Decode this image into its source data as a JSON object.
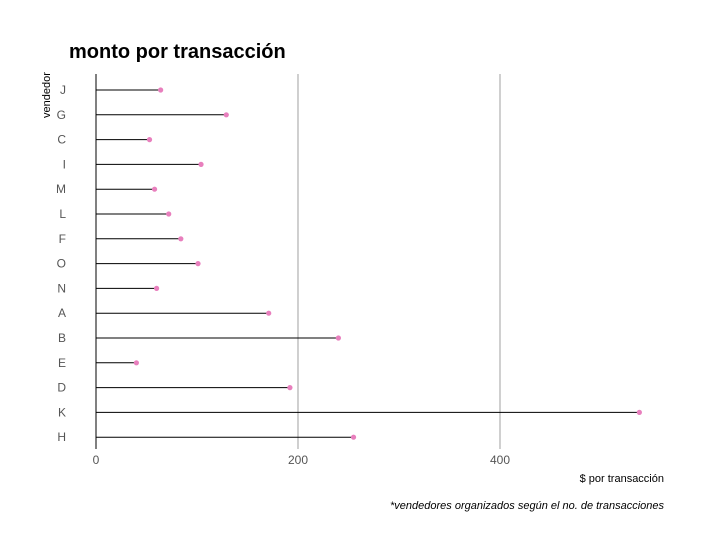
{
  "chart_data": {
    "type": "lollipop",
    "title": "monto por transacción",
    "xlabel": "$ por transacción",
    "ylabel": "vendedor",
    "caption": "*vendedores organizados según el no. de transacciones",
    "xlim": [
      0,
      540
    ],
    "xticks": [
      0,
      200,
      400
    ],
    "grid": "vertical",
    "categories": [
      "J",
      "G",
      "C",
      "I",
      "M",
      "L",
      "F",
      "O",
      "N",
      "A",
      "B",
      "E",
      "D",
      "K",
      "H"
    ],
    "values": [
      64,
      129,
      53,
      104,
      58,
      72,
      84,
      101,
      60,
      171,
      240,
      40,
      192,
      538,
      255
    ],
    "colors": {
      "point": "#e87fbd",
      "stem": "#000000",
      "grid": "#888888"
    }
  }
}
